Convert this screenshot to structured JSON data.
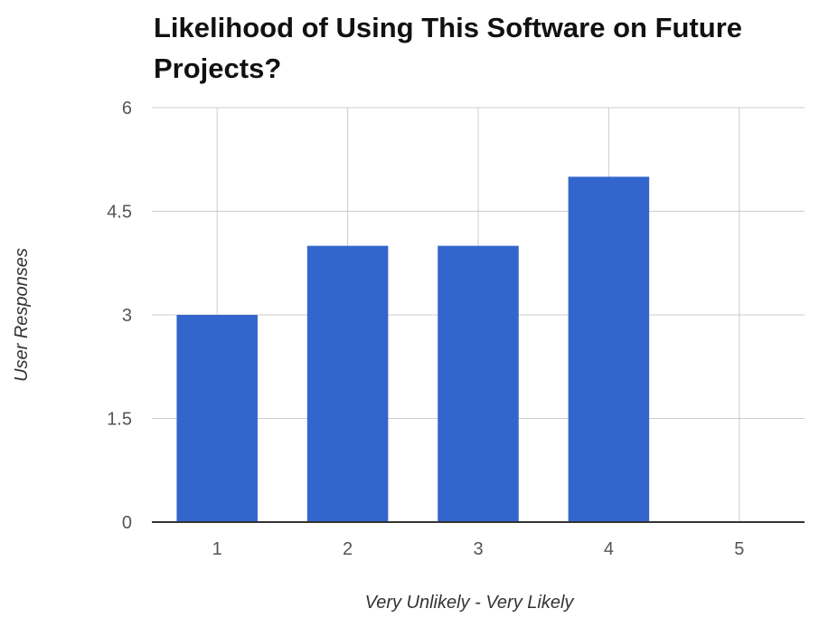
{
  "chart_data": {
    "type": "bar",
    "title": "Likelihood of Using This Software on Future Projects?",
    "xlabel": "Very Unlikely - Very Likely",
    "ylabel": "User Responses",
    "categories": [
      "1",
      "2",
      "3",
      "4",
      "5"
    ],
    "values": [
      3,
      4,
      4,
      5,
      0
    ],
    "ylim": [
      0,
      6
    ],
    "yticks": [
      "0",
      "1.5",
      "3",
      "4.5",
      "6"
    ],
    "grid": true,
    "legend": "none",
    "colors": {
      "bar": "#3366cc",
      "grid": "#cccccc",
      "baseline": "#333333"
    }
  }
}
